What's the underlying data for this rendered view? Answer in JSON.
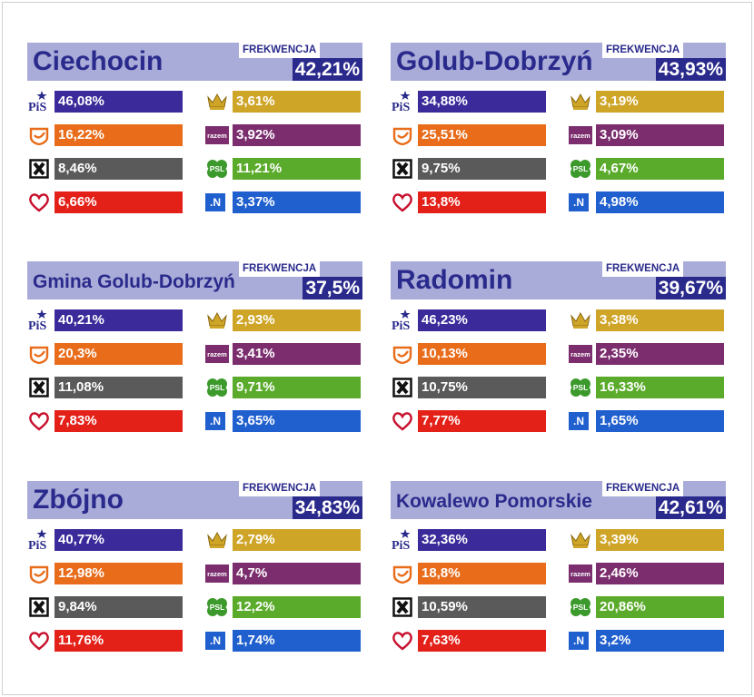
{
  "chart_data": [
    {
      "type": "bar",
      "title": "Ciechocin",
      "turnout_label": "FREKWENCJA",
      "turnout": "42,21%",
      "categories": [
        "PiS",
        "PO",
        "Kukiz'15",
        "SLD",
        "KORWiN",
        "Razem",
        "PSL",
        ".Nowoczesna"
      ],
      "labels": [
        "46,08%",
        "16,22%",
        "8,46%",
        "6,66%",
        "3,61%",
        "3,92%",
        "11,21%",
        "3,37%"
      ],
      "values": [
        46.08,
        16.22,
        8.46,
        6.66,
        3.61,
        3.92,
        11.21,
        3.37
      ]
    },
    {
      "type": "bar",
      "title": "Golub-Dobrzyń",
      "turnout_label": "FREKWENCJA",
      "turnout": "43,93%",
      "categories": [
        "PiS",
        "PO",
        "Kukiz'15",
        "SLD",
        "KORWiN",
        "Razem",
        "PSL",
        ".Nowoczesna"
      ],
      "labels": [
        "34,88%",
        "25,51%",
        "9,75%",
        "13,8%",
        "3,19%",
        "3,09%",
        "4,67%",
        "4,98%"
      ],
      "values": [
        34.88,
        25.51,
        9.75,
        13.8,
        3.19,
        3.09,
        4.67,
        4.98
      ]
    },
    {
      "type": "bar",
      "title": "Gmina Golub-Dobrzyń",
      "turnout_label": "FREKWENCJA",
      "turnout": "37,5%",
      "categories": [
        "PiS",
        "PO",
        "Kukiz'15",
        "SLD",
        "KORWiN",
        "Razem",
        "PSL",
        ".Nowoczesna"
      ],
      "labels": [
        "40,21%",
        "20,3%",
        "11,08%",
        "7,83%",
        "2,93%",
        "3,41%",
        "9,71%",
        "3,65%"
      ],
      "values": [
        40.21,
        20.3,
        11.08,
        7.83,
        2.93,
        3.41,
        9.71,
        3.65
      ]
    },
    {
      "type": "bar",
      "title": "Radomin",
      "turnout_label": "FREKWENCJA",
      "turnout": "39,67%",
      "categories": [
        "PiS",
        "PO",
        "Kukiz'15",
        "SLD",
        "KORWiN",
        "Razem",
        "PSL",
        ".Nowoczesna"
      ],
      "labels": [
        "46,23%",
        "10,13%",
        "10,75%",
        "7,77%",
        "3,38%",
        "2,35%",
        "16,33%",
        "1,65%"
      ],
      "values": [
        46.23,
        10.13,
        10.75,
        7.77,
        3.38,
        2.35,
        16.33,
        1.65
      ]
    },
    {
      "type": "bar",
      "title": "Zbójno",
      "turnout_label": "FREKWENCJA",
      "turnout": "34,83%",
      "categories": [
        "PiS",
        "PO",
        "Kukiz'15",
        "SLD",
        "KORWiN",
        "Razem",
        "PSL",
        ".Nowoczesna"
      ],
      "labels": [
        "40,77%",
        "12,98%",
        "9,84%",
        "11,76%",
        "2,79%",
        "4,7%",
        "12,2%",
        "1,74%"
      ],
      "values": [
        40.77,
        12.98,
        9.84,
        11.76,
        2.79,
        4.7,
        12.2,
        1.74
      ]
    },
    {
      "type": "bar",
      "title": "Kowalewo Pomorskie",
      "turnout_label": "FREKWENCJA",
      "turnout": "42,61%",
      "categories": [
        "PiS",
        "PO",
        "Kukiz'15",
        "SLD",
        "KORWiN",
        "Razem",
        "PSL",
        ".Nowoczesna"
      ],
      "labels": [
        "32,36%",
        "18,8%",
        "10,59%",
        "7,63%",
        "3,39%",
        "2,46%",
        "20,86%",
        "3,2%"
      ],
      "values": [
        32.36,
        18.8,
        10.59,
        7.63,
        3.39,
        2.46,
        20.86,
        3.2
      ]
    }
  ],
  "party_colors": [
    "#3a2a9a",
    "#e86c1a",
    "#5a5a5a",
    "#e32119",
    "#cfa528",
    "#7b2d6e",
    "#5aab2b",
    "#1f5fce"
  ],
  "party_icons": [
    "pis-logo-icon",
    "po-logo-icon",
    "kukiz-x-icon",
    "sld-heart-icon",
    "korwin-crown-icon",
    "razem-logo-icon",
    "psl-clover-icon",
    "nowoczesna-logo-icon"
  ],
  "logo_text": {
    "pis": "PiS",
    "razem": "razem",
    "psl": "PSL",
    "nowoczesna": ".N"
  }
}
